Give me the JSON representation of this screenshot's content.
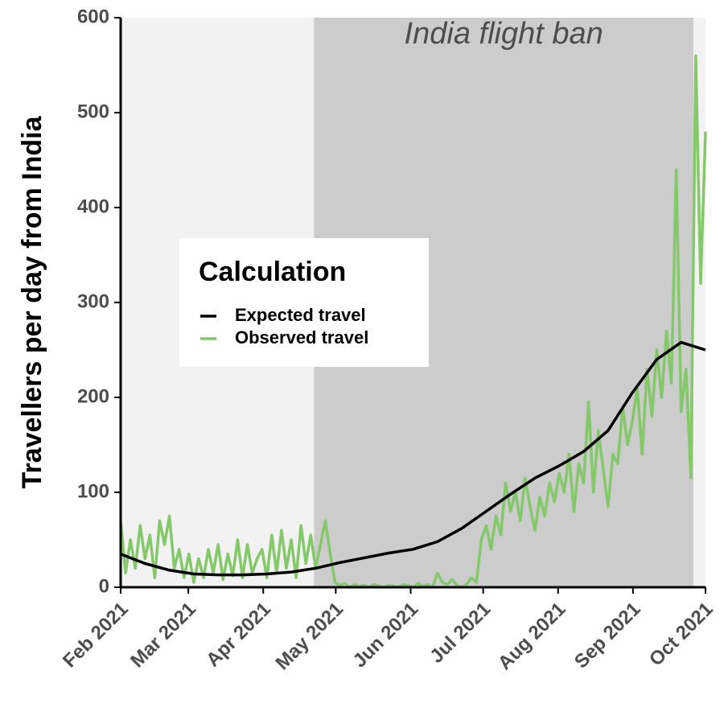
{
  "chart_data": {
    "type": "line",
    "ylabel": "Travellers per day from India",
    "xlim": [
      "2021-02",
      "2021-10"
    ],
    "xticks": [
      {
        "value": "2021-02",
        "label": "Feb 2021"
      },
      {
        "value": "2021-03",
        "label": "Mar 2021"
      },
      {
        "value": "2021-04",
        "label": "Apr 2021"
      },
      {
        "value": "2021-05",
        "label": "May 2021"
      },
      {
        "value": "2021-06",
        "label": "Jun 2021"
      },
      {
        "value": "2021-07",
        "label": "Jul 2021"
      },
      {
        "value": "2021-08",
        "label": "Aug 2021"
      },
      {
        "value": "2021-09",
        "label": "Sep 2021"
      },
      {
        "value": "2021-10",
        "label": "Oct 2021"
      }
    ],
    "ylim": [
      0,
      600
    ],
    "yticks": [
      0,
      100,
      200,
      300,
      400,
      500,
      600
    ],
    "shaded_region": {
      "label": "India flight ban",
      "start": "2021-04-22",
      "end": "2021-09-26",
      "color": "#cccccc"
    },
    "background": "#f2f2f2",
    "legend_title": "Calculation",
    "legend_position": "center-left",
    "series": [
      {
        "name": "Expected travel",
        "color": "#000000",
        "values": [
          35,
          25,
          18,
          14,
          13,
          13,
          14,
          16,
          20,
          26,
          31,
          36,
          40,
          48,
          62,
          80,
          98,
          115,
          128,
          143,
          165,
          205,
          240,
          258,
          250
        ]
      },
      {
        "name": "Observed travel",
        "color": "#84c86a",
        "values": [
          70,
          15,
          50,
          20,
          65,
          30,
          55,
          10,
          70,
          45,
          75,
          20,
          40,
          10,
          35,
          5,
          30,
          10,
          40,
          15,
          45,
          8,
          35,
          12,
          50,
          10,
          45,
          15,
          30,
          40,
          10,
          55,
          15,
          60,
          20,
          50,
          10,
          65,
          25,
          55,
          20,
          45,
          70,
          35,
          5,
          2,
          4,
          0,
          3,
          1,
          2,
          0,
          3,
          1,
          0,
          2,
          1,
          0,
          3,
          2,
          0,
          4,
          1,
          3,
          0,
          15,
          5,
          3,
          8,
          2,
          0,
          3,
          10,
          5,
          50,
          65,
          40,
          75,
          55,
          110,
          80,
          100,
          70,
          115,
          85,
          60,
          95,
          75,
          110,
          90,
          120,
          100,
          140,
          80,
          130,
          110,
          195,
          100,
          165,
          125,
          85,
          140,
          130,
          190,
          150,
          175,
          210,
          140,
          230,
          180,
          250,
          200,
          270,
          215,
          440,
          185,
          230,
          115,
          560,
          320,
          480
        ]
      }
    ]
  }
}
